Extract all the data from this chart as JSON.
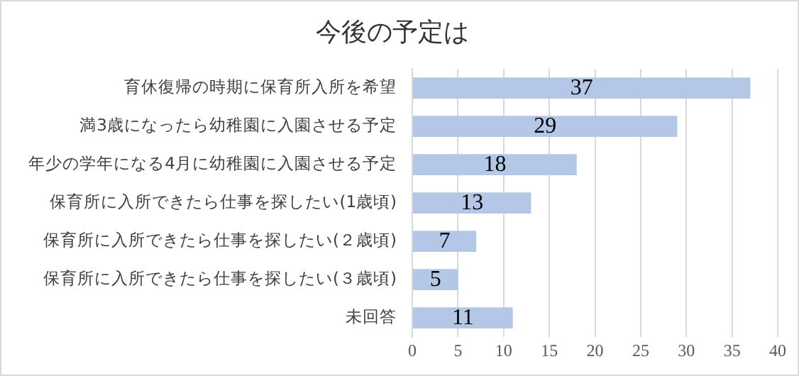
{
  "chart_data": {
    "type": "bar",
    "orientation": "horizontal",
    "title": "今後の予定は",
    "categories": [
      "育休復帰の時期に保育所入所を希望",
      "満3歳になったら幼稚園に入園させる予定",
      "年少の学年になる4月に幼稚園に入園させる予定",
      "保育所に入所できたら仕事を探したい(1歳頃)",
      "保育所に入所できたら仕事を探したい(２歳頃)",
      "保育所に入所できたら仕事を探したい(３歳頃)",
      "未回答"
    ],
    "values": [
      37,
      29,
      18,
      13,
      7,
      5,
      11
    ],
    "color": "#b4c7e7",
    "xlim": [
      0,
      40
    ],
    "xticks": [
      0,
      5,
      10,
      15,
      20,
      25,
      30,
      35,
      40
    ],
    "grid": "x",
    "legend": false,
    "data_labels": true
  }
}
